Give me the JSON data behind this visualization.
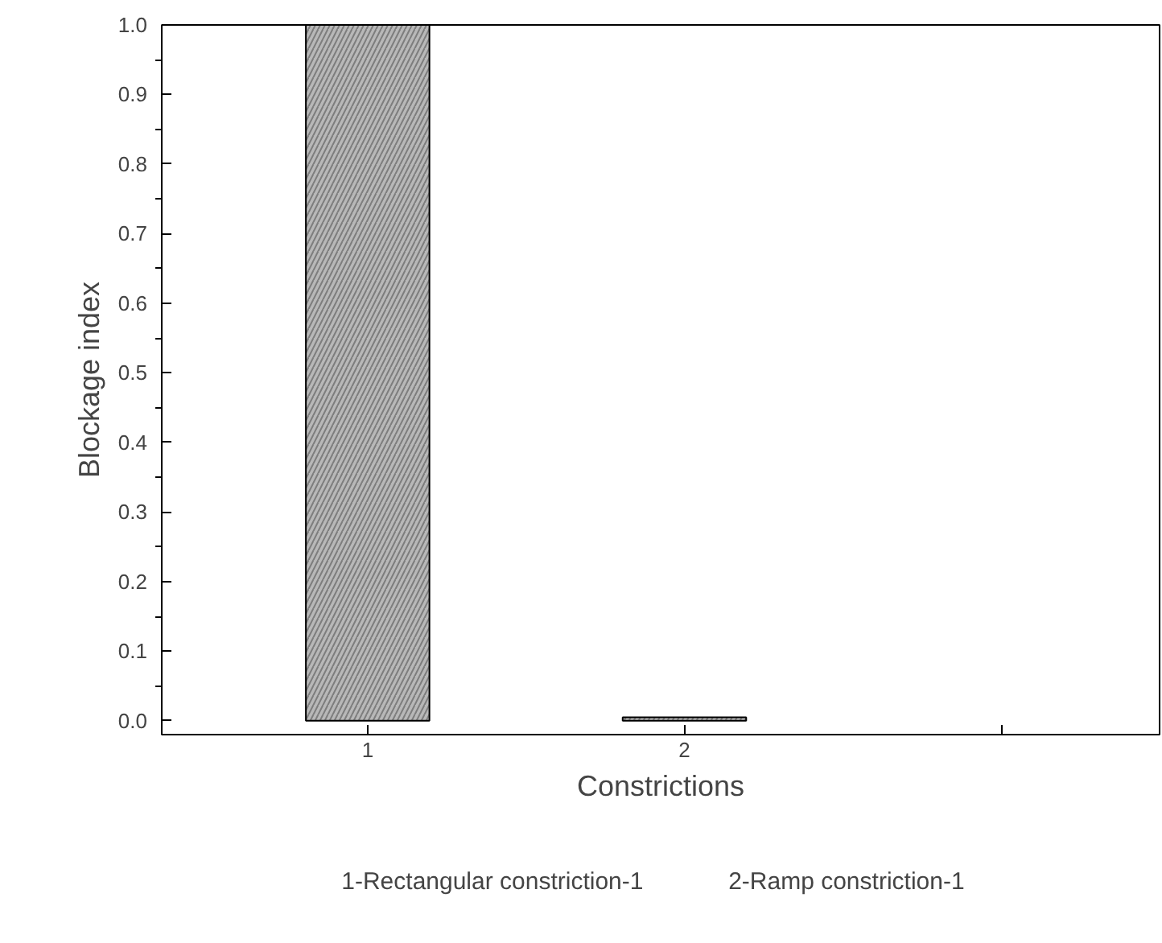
{
  "chart_data": {
    "type": "bar",
    "xlabel": "Constrictions",
    "ylabel": "Blockage index",
    "categories": [
      "1",
      "2",
      null
    ],
    "values": [
      1.0,
      0.005,
      null
    ],
    "color": "#b8b8b8",
    "ylim": [
      -0.02,
      1.0
    ],
    "yticks": [
      {
        "value": 0,
        "label": "0.0"
      },
      0.1,
      0.2,
      0.3,
      0.4,
      0.5,
      0.6,
      0.7,
      0.8,
      0.9,
      {
        "value": 1,
        "label": "1.0"
      }
    ],
    "grid": false,
    "annotations": [
      "1-Rectangular constriction-1",
      "2-Ramp constriction-1"
    ]
  }
}
